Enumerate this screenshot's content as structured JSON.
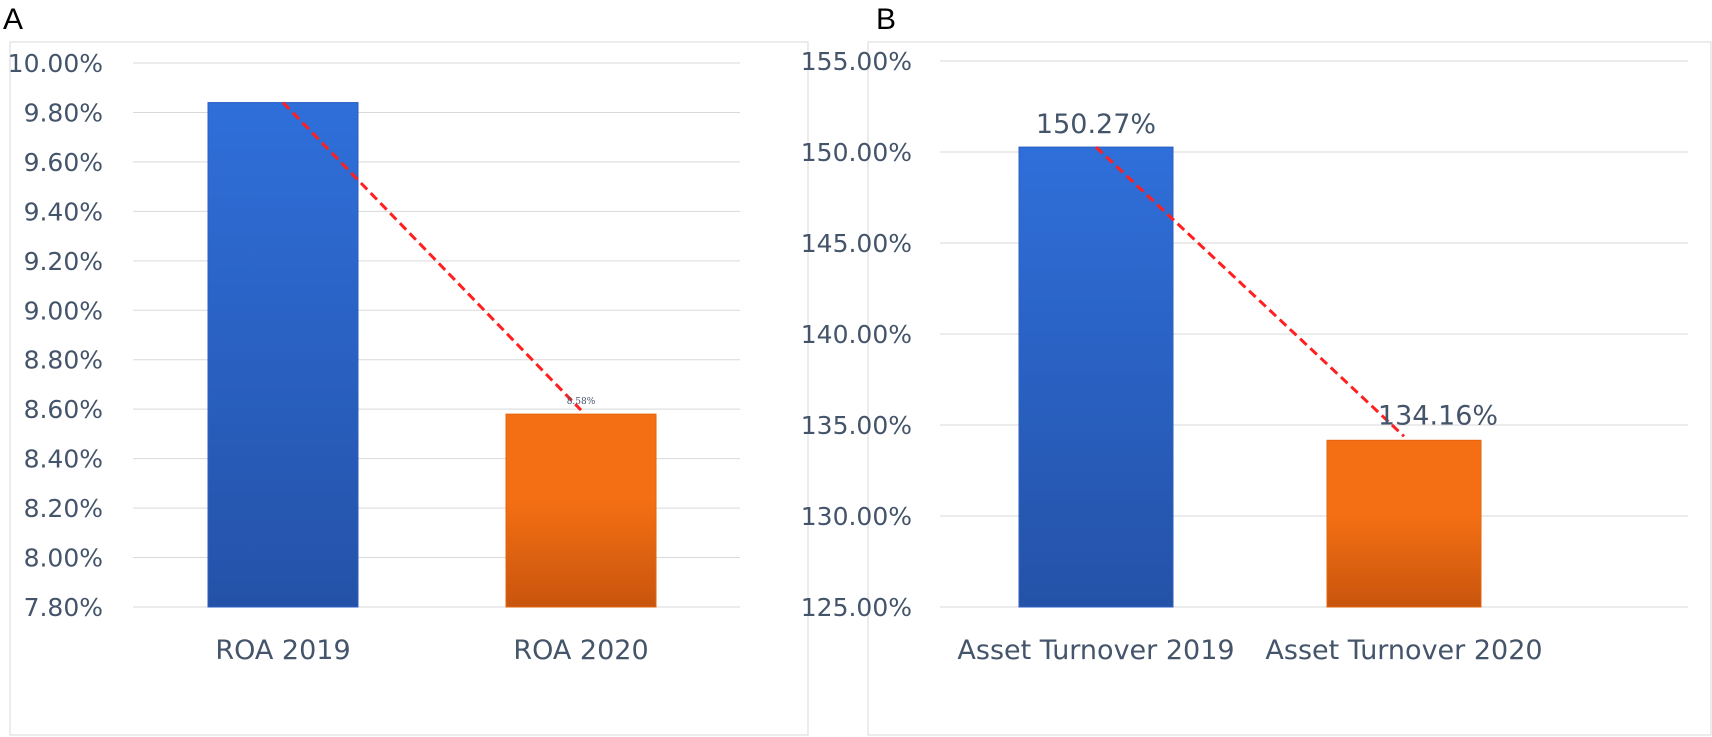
{
  "colors": {
    "bar_2019_top": "#2f6fda",
    "bar_2019_bottom": "#2452a8",
    "bar_2020_top": "#f46f13",
    "bar_2020_bottom": "#c8550e",
    "trend_line": "#ff1f1f",
    "gridline": "#d9d9d9",
    "text": "#44546a"
  },
  "chart_data": [
    {
      "panel_label": "A",
      "type": "bar",
      "categories": [
        "ROA 2019",
        "ROA 2020"
      ],
      "values": [
        9.84,
        8.58
      ],
      "value_format": "percent_2dp",
      "data_labels": [
        "",
        "8.58%"
      ],
      "ylim": [
        7.8,
        10.0
      ],
      "yticks": [
        "7.80%",
        "8.00%",
        "8.20%",
        "8.40%",
        "8.60%",
        "8.80%",
        "9.00%",
        "9.20%",
        "9.40%",
        "9.60%",
        "9.80%",
        "10.00%"
      ],
      "ytick_values": [
        7.8,
        8.0,
        8.2,
        8.4,
        8.6,
        8.8,
        9.0,
        9.2,
        9.4,
        9.6,
        9.8,
        10.0
      ],
      "grid": true,
      "trend_line": "dashed, connecting bar tops"
    },
    {
      "panel_label": "B",
      "type": "bar",
      "categories": [
        "Asset Turnover 2019",
        "Asset Turnover 2020"
      ],
      "values": [
        150.27,
        134.16
      ],
      "value_format": "percent_2dp",
      "data_labels": [
        "150.27%",
        "134.16%"
      ],
      "ylim": [
        125.0,
        155.0
      ],
      "yticks": [
        "125.00%",
        "130.00%",
        "135.00%",
        "140.00%",
        "145.00%",
        "150.00%",
        "155.00%"
      ],
      "ytick_values": [
        125,
        130,
        135,
        140,
        145,
        150,
        155
      ],
      "grid": true,
      "trend_line": "dashed, connecting bar tops"
    }
  ]
}
